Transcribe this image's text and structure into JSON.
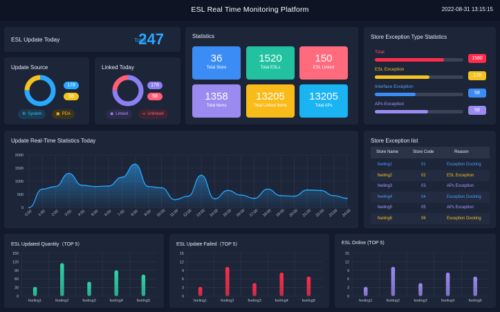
{
  "header": {
    "title": "ESL Real Time Monitoring Platform",
    "datetime": "2022-08-31 13:15:15"
  },
  "update_today": {
    "title": "ESL Update Today",
    "total_label": "Total",
    "total_value": "247"
  },
  "update_source": {
    "title": "Update Source",
    "values": [
      178,
      58
    ],
    "labels": [
      "178",
      "58"
    ],
    "legend": [
      {
        "label": "System",
        "icon": "system-icon"
      },
      {
        "label": "PDA",
        "icon": "pda-icon"
      }
    ],
    "colors": [
      "#29a8ff",
      "#f5c321"
    ]
  },
  "linked_today": {
    "title": "Linked Today",
    "values": [
      178,
      58
    ],
    "labels": [
      "178",
      "58"
    ],
    "legend": [
      {
        "label": "Linked",
        "icon": "link-icon"
      },
      {
        "label": "Unlinked",
        "icon": "unlink-icon"
      }
    ],
    "colors": [
      "#8b7ff2",
      "#ff5f75"
    ]
  },
  "statistics": {
    "title": "Statistics",
    "cards": [
      {
        "value": "36",
        "label": "Total Store",
        "color": "#3b8df5"
      },
      {
        "value": "1520",
        "label": "Total ESLs",
        "color": "#22c2a0"
      },
      {
        "value": "150",
        "label": "ESL Linked",
        "color": "#ff6b7d"
      },
      {
        "value": "1358",
        "label": "Total Items",
        "color": "#9b8af0"
      },
      {
        "value": "13205",
        "label": "Total Linked Items",
        "color": "#f8bb19"
      },
      {
        "value": "13205",
        "label": "Total APs",
        "color": "#1bb4f2"
      }
    ]
  },
  "exception_types": {
    "title": "Store Exception Type Statistics",
    "rows": [
      {
        "name": "Total",
        "value": "1580",
        "fraction": 0.78,
        "color": "#ff2d4b",
        "name_color": "#ff4b62"
      },
      {
        "name": "ESL Exception",
        "value": "178",
        "fraction": 0.62,
        "color": "#f5c321",
        "name_color": "#f5c321"
      },
      {
        "name": "Interface Exception",
        "value": "58",
        "fraction": 0.46,
        "color": "#3b8df5",
        "name_color": "#5aa2ff"
      },
      {
        "name": "APs Exception",
        "value": "58",
        "fraction": 0.6,
        "color": "#9b8af0",
        "name_color": "#a99bff"
      }
    ]
  },
  "exception_list": {
    "title": "Store Exception list",
    "headers": [
      "Store Name",
      "Store Code",
      "Reason"
    ],
    "rows": [
      {
        "store": "feeling1",
        "code": "01",
        "reason": "Exception Docking",
        "color": "#4a9dff"
      },
      {
        "store": "feeling2",
        "code": "02",
        "reason": "ESL Exception",
        "color": "#f5c321"
      },
      {
        "store": "feeling3",
        "code": "03",
        "reason": "APs Exception",
        "color": "#a99bff"
      },
      {
        "store": "feeling4",
        "code": "04",
        "reason": "Exception Docking",
        "color": "#4a9dff"
      },
      {
        "store": "feeling5",
        "code": "05",
        "reason": "APs Exception",
        "color": "#a99bff"
      },
      {
        "store": "feeling6",
        "code": "06",
        "reason": "Exception Docking",
        "color": "#f5c321"
      }
    ]
  },
  "chart_data": [
    {
      "type": "area",
      "title": "Update Real-Time Statistics Today",
      "x": [
        "0:00",
        "1:00",
        "2:00",
        "3:00",
        "4:00",
        "5:00",
        "6:00",
        "7:00",
        "8:00",
        "9:00",
        "10:00",
        "11:00",
        "12:00",
        "13:00",
        "14:00",
        "15:00",
        "16:00",
        "17:00",
        "18:00",
        "19:00",
        "20:00",
        "21:00",
        "22:00",
        "23:00",
        "24:00"
      ],
      "values": [
        0,
        700,
        800,
        1300,
        850,
        800,
        820,
        1150,
        1650,
        800,
        750,
        300,
        430,
        1230,
        330,
        650,
        470,
        350,
        700,
        450,
        430,
        670,
        650,
        450,
        350
      ],
      "xlabel": "",
      "ylabel": "",
      "ylim": [
        0,
        2000
      ],
      "yticks": [
        0,
        500,
        1000,
        1500,
        2000
      ],
      "color": "#29a8ff"
    },
    {
      "type": "bar",
      "title": "ESL Updated Quantity（TOP 5）",
      "categories": [
        "feeling1",
        "feeling2",
        "feeling3",
        "feeling4",
        "feeling5"
      ],
      "values": [
        32,
        115,
        50,
        90,
        75
      ],
      "ylim": [
        0,
        150
      ],
      "yticks": [
        0,
        30,
        60,
        90,
        120,
        150
      ],
      "color": "#2fd3a7"
    },
    {
      "type": "bar",
      "title": "ESL Update Failed（TOP 5）",
      "categories": [
        "feeling1",
        "feeling2",
        "feeling3",
        "feeling4",
        "feeling5"
      ],
      "values": [
        3.2,
        10.2,
        4.5,
        8.2,
        6.8
      ],
      "ylim": [
        0,
        15
      ],
      "yticks": [
        0,
        3,
        6,
        9,
        12,
        15
      ],
      "color": "#ff2d4b"
    },
    {
      "type": "bar",
      "title": "ESL Online (TOP 5)",
      "categories": [
        "feeling1",
        "feeling2",
        "feeling3",
        "feeling4",
        "feeling5"
      ],
      "values": [
        3.2,
        10.2,
        4.5,
        8.2,
        6.8
      ],
      "ylim": [
        0,
        15
      ],
      "yticks": [
        0,
        3,
        6,
        9,
        12,
        15
      ],
      "color": "#9b8af0"
    }
  ]
}
